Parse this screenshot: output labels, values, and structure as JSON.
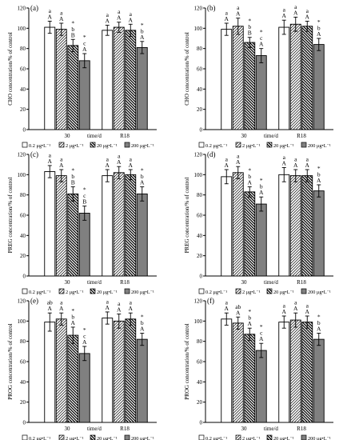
{
  "chart_data": [
    {
      "panel": "(a)",
      "type": "bar",
      "categories": [
        "30",
        "R18"
      ],
      "xlabel": "time/d",
      "ylabel": "CHO concentration/% of control",
      "ylim": [
        0,
        120
      ],
      "yticks": [
        0,
        20,
        40,
        60,
        80,
        100,
        120
      ],
      "series": [
        {
          "name": "0.2 μg•L⁻¹",
          "values": [
            101,
            98
          ],
          "errors": [
            6,
            5
          ],
          "sig": [
            [
              "a",
              "A"
            ],
            [
              "a",
              "A"
            ]
          ]
        },
        {
          "name": "2 μg•L⁻¹",
          "values": [
            99,
            101
          ],
          "errors": [
            6,
            5
          ],
          "sig": [
            [
              "a",
              "A"
            ],
            [
              "a",
              "A"
            ]
          ]
        },
        {
          "name": "20 μg•L⁻¹",
          "values": [
            83,
            98
          ],
          "errors": [
            6,
            6
          ],
          "sig": [
            [
              "*",
              "b",
              "B"
            ],
            [
              "a",
              "A"
            ]
          ]
        },
        {
          "name": "200 μg•L⁻¹",
          "values": [
            68,
            81
          ],
          "errors": [
            7,
            6
          ],
          "sig": [
            [
              "*",
              "c",
              "A"
            ],
            [
              "*",
              "b",
              "A"
            ]
          ]
        }
      ]
    },
    {
      "panel": "(b)",
      "type": "bar",
      "categories": [
        "30",
        "R18"
      ],
      "xlabel": "time/d",
      "ylabel": "CHO concentration/% of control",
      "ylim": [
        0,
        120
      ],
      "yticks": [
        0,
        20,
        40,
        60,
        80,
        100,
        120
      ],
      "series": [
        {
          "name": "0.2 μg•L⁻¹",
          "values": [
            99,
            101
          ],
          "errors": [
            6,
            7
          ],
          "sig": [
            [
              "a",
              "A"
            ],
            [
              "a",
              "A"
            ]
          ]
        },
        {
          "name": "2 μg•L⁻¹",
          "values": [
            102,
            104
          ],
          "errors": [
            8,
            7
          ],
          "sig": [
            [
              "a",
              "A"
            ],
            [
              "a",
              "A"
            ]
          ]
        },
        {
          "name": "20 μg•L⁻¹",
          "values": [
            86,
            102
          ],
          "errors": [
            5,
            5
          ],
          "sig": [
            [
              "*",
              "b",
              "B"
            ],
            [
              "a",
              "A"
            ]
          ]
        },
        {
          "name": "200 μg•L⁻¹",
          "values": [
            73,
            84
          ],
          "errors": [
            7,
            6
          ],
          "sig": [
            [
              "*",
              "c",
              "A"
            ],
            [
              "*",
              "b",
              "A"
            ]
          ]
        }
      ]
    },
    {
      "panel": "(c)",
      "type": "bar",
      "categories": [
        "30",
        "R18"
      ],
      "xlabel": "time/d",
      "ylabel": "PREG concentration/% of control",
      "ylim": [
        0,
        120
      ],
      "yticks": [
        0,
        20,
        40,
        60,
        80,
        100,
        120
      ],
      "series": [
        {
          "name": "0.2 μg•L⁻¹",
          "values": [
            103,
            99
          ],
          "errors": [
            6,
            6
          ],
          "sig": [
            [
              "a",
              "A"
            ],
            [
              "a",
              "A"
            ]
          ]
        },
        {
          "name": "2 μg•L⁻¹",
          "values": [
            99,
            102
          ],
          "errors": [
            6,
            6
          ],
          "sig": [
            [
              "a",
              "A"
            ],
            [
              "a",
              "A"
            ]
          ]
        },
        {
          "name": "20 μg•L⁻¹",
          "values": [
            81,
            100
          ],
          "errors": [
            7,
            5
          ],
          "sig": [
            [
              "*",
              "b",
              "B"
            ],
            [
              "a",
              "A"
            ]
          ]
        },
        {
          "name": "200 μg•L⁻¹",
          "values": [
            62,
            81
          ],
          "errors": [
            7,
            7
          ],
          "sig": [
            [
              "*",
              "c",
              "B"
            ],
            [
              "*",
              "b",
              "A"
            ]
          ]
        }
      ]
    },
    {
      "panel": "(d)",
      "type": "bar",
      "categories": [
        "30",
        "R18"
      ],
      "xlabel": "time/d",
      "ylabel": "PREG concentration/% of control",
      "ylim": [
        0,
        120
      ],
      "yticks": [
        0,
        20,
        40,
        60,
        80,
        100,
        120
      ],
      "series": [
        {
          "name": "0.2 μg•L⁻¹",
          "values": [
            98,
            100
          ],
          "errors": [
            7,
            7
          ],
          "sig": [
            [
              "a",
              "A"
            ],
            [
              "a",
              "A"
            ]
          ]
        },
        {
          "name": "2 μg•L⁻¹",
          "values": [
            102,
            99
          ],
          "errors": [
            6,
            6
          ],
          "sig": [
            [
              "a",
              "A"
            ],
            [
              "a",
              "A"
            ]
          ]
        },
        {
          "name": "20 μg•L⁻¹",
          "values": [
            83,
            99
          ],
          "errors": [
            5,
            6
          ],
          "sig": [
            [
              "*",
              "b",
              "A"
            ],
            [
              "a",
              "A"
            ]
          ]
        },
        {
          "name": "200 μg•L⁻¹",
          "values": [
            71,
            84
          ],
          "errors": [
            7,
            6
          ],
          "sig": [
            [
              "*",
              "b",
              "A"
            ],
            [
              "*",
              "b",
              "A"
            ]
          ]
        }
      ]
    },
    {
      "panel": "(e)",
      "type": "bar",
      "categories": [
        "30",
        "R18"
      ],
      "xlabel": "time/d",
      "ylabel": "PROG concentration/% of control",
      "ylim": [
        0,
        120
      ],
      "yticks": [
        0,
        20,
        40,
        60,
        80,
        100,
        120
      ],
      "series": [
        {
          "name": "0.2 μg•L⁻¹",
          "values": [
            99,
            103
          ],
          "errors": [
            9,
            6
          ],
          "sig": [
            [
              "ab",
              "A"
            ],
            [
              "a",
              "A"
            ]
          ]
        },
        {
          "name": "2 μg•L⁻¹",
          "values": [
            102,
            100
          ],
          "errors": [
            6,
            7
          ],
          "sig": [
            [
              "a",
              "A"
            ],
            [
              "a",
              "A"
            ]
          ]
        },
        {
          "name": "20 μg•L⁻¹",
          "values": [
            86,
            102
          ],
          "errors": [
            8,
            6
          ],
          "sig": [
            [
              "*",
              "b",
              "A"
            ],
            [
              "a",
              "A"
            ]
          ]
        },
        {
          "name": "200 μg•L⁻¹",
          "values": [
            68,
            82
          ],
          "errors": [
            7,
            6
          ],
          "sig": [
            [
              "*",
              "c",
              "A"
            ],
            [
              "*",
              "b",
              "A"
            ]
          ]
        }
      ]
    },
    {
      "panel": "(f)",
      "type": "bar",
      "categories": [
        "30",
        "R18"
      ],
      "xlabel": "time/d",
      "ylabel": "PROG concentration/% of control",
      "ylim": [
        0,
        120
      ],
      "yticks": [
        0,
        20,
        40,
        60,
        80,
        100,
        120
      ],
      "series": [
        {
          "name": "0.2 μg•L⁻¹",
          "values": [
            102,
            99
          ],
          "errors": [
            6,
            6
          ],
          "sig": [
            [
              "a",
              "A"
            ],
            [
              "a",
              "A"
            ]
          ]
        },
        {
          "name": "2 μg•L⁻¹",
          "values": [
            98,
            101
          ],
          "errors": [
            6,
            7
          ],
          "sig": [
            [
              "ab",
              "A"
            ],
            [
              "a",
              "A"
            ]
          ]
        },
        {
          "name": "20 μg•L⁻¹",
          "values": [
            87,
            99
          ],
          "errors": [
            6,
            6
          ],
          "sig": [
            [
              "*",
              "b",
              "A"
            ],
            [
              "a",
              "A"
            ]
          ]
        },
        {
          "name": "200 μg•L⁻¹",
          "values": [
            71,
            82
          ],
          "errors": [
            7,
            6
          ],
          "sig": [
            [
              "*",
              "c",
              "A"
            ],
            [
              "*",
              "b",
              "A"
            ]
          ]
        }
      ]
    }
  ],
  "legend": {
    "items": [
      "0.2 μg•L⁻¹",
      "2 μg•L⁻¹",
      "20 μg•L⁻¹",
      "200 μg•L⁻¹"
    ],
    "fills": [
      "white",
      "diag-light",
      "diag-dark",
      "gray"
    ],
    "position": "bottom"
  },
  "colors": {
    "gray_fill": "#808080",
    "axis": "#000000",
    "background": "#ffffff"
  }
}
